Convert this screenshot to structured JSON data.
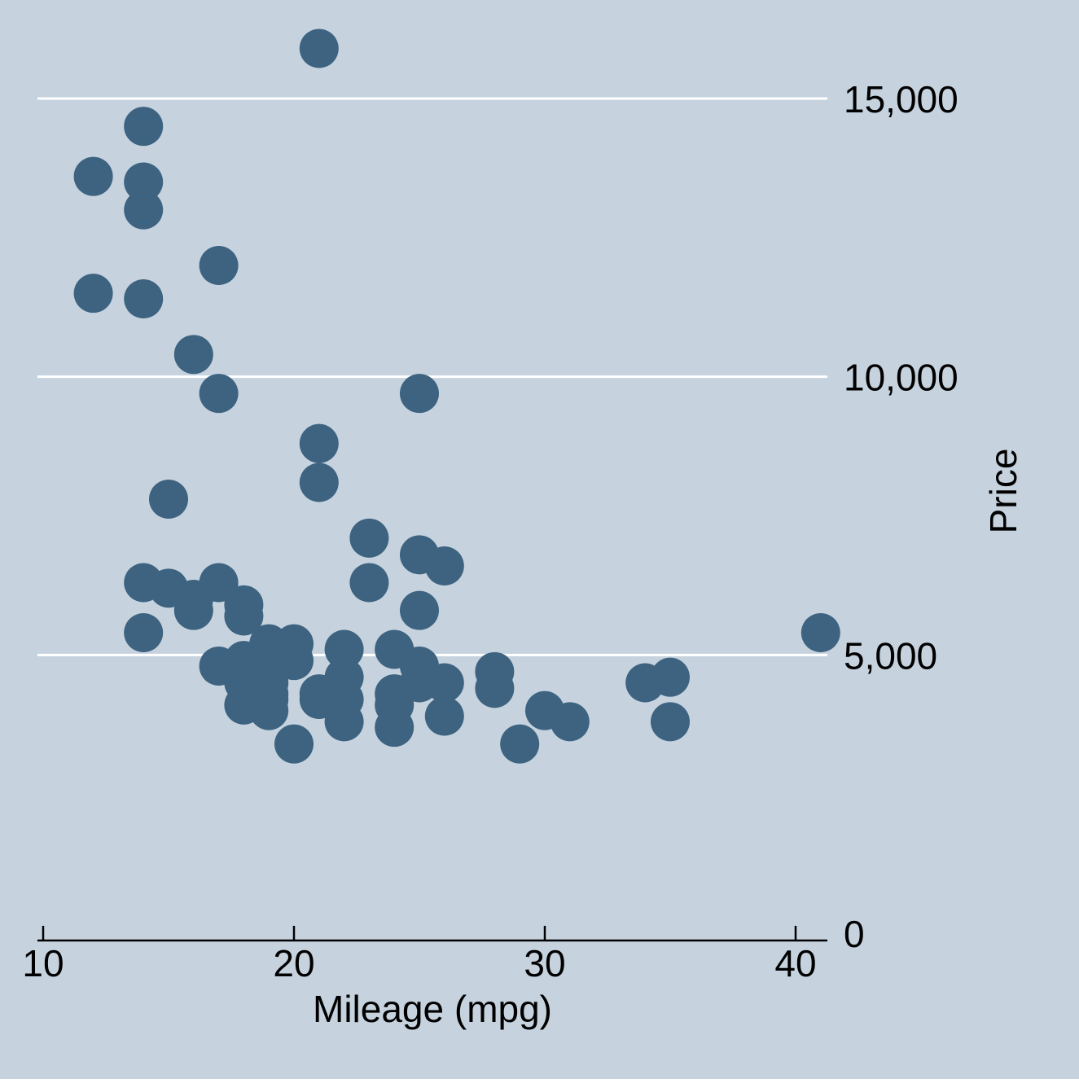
{
  "chart_data": {
    "type": "scatter",
    "xlabel": "Mileage (mpg)",
    "ylabel": "Price",
    "xlim": [
      10,
      41
    ],
    "ylim": [
      0,
      16000
    ],
    "xticks": [
      10,
      20,
      30,
      40
    ],
    "xtick_labels": [
      "10",
      "20",
      "30",
      "40"
    ],
    "yticks": [
      0,
      5000,
      10000,
      15000
    ],
    "ytick_labels": [
      "0",
      "5,000",
      "10,000",
      "15,000"
    ],
    "y_axis_side": "right",
    "grid": "horizontal",
    "colors": {
      "background": "#c6d3df",
      "plot_background": "#c6d3df",
      "marker": "#3d6380",
      "gridline": "#ffffff",
      "axis": "#000000"
    },
    "series": [
      {
        "points": [
          [
            21,
            15900
          ],
          [
            14,
            14500
          ],
          [
            12,
            13600
          ],
          [
            14,
            13500
          ],
          [
            14,
            13000
          ],
          [
            17,
            12000
          ],
          [
            12,
            11500
          ],
          [
            14,
            11400
          ],
          [
            16,
            10400
          ],
          [
            17,
            9700
          ],
          [
            25,
            9700
          ],
          [
            21,
            8800
          ],
          [
            21,
            8100
          ],
          [
            15,
            7800
          ],
          [
            23,
            7100
          ],
          [
            25,
            6800
          ],
          [
            26,
            6600
          ],
          [
            14,
            6300
          ],
          [
            23,
            6300
          ],
          [
            17,
            6300
          ],
          [
            15,
            6200
          ],
          [
            16,
            6000
          ],
          [
            18,
            5900
          ],
          [
            16,
            5800
          ],
          [
            25,
            5800
          ],
          [
            18,
            5700
          ],
          [
            14,
            5400
          ],
          [
            41,
            5400
          ],
          [
            19,
            5200
          ],
          [
            20,
            5200
          ],
          [
            22,
            5100
          ],
          [
            24,
            5100
          ],
          [
            20,
            4900
          ],
          [
            19,
            4900
          ],
          [
            18,
            4900
          ],
          [
            17,
            4800
          ],
          [
            25,
            4800
          ],
          [
            28,
            4700
          ],
          [
            35,
            4600
          ],
          [
            22,
            4600
          ],
          [
            18,
            4500
          ],
          [
            19,
            4500
          ],
          [
            25,
            4500
          ],
          [
            26,
            4500
          ],
          [
            34,
            4500
          ],
          [
            28,
            4400
          ],
          [
            19,
            4300
          ],
          [
            21,
            4300
          ],
          [
            24,
            4300
          ],
          [
            19,
            4200
          ],
          [
            21,
            4200
          ],
          [
            22,
            4200
          ],
          [
            24,
            4100
          ],
          [
            18,
            4100
          ],
          [
            30,
            4000
          ],
          [
            19,
            4000
          ],
          [
            26,
            3900
          ],
          [
            22,
            3800
          ],
          [
            35,
            3800
          ],
          [
            31,
            3800
          ],
          [
            24,
            3700
          ],
          [
            20,
            3400
          ],
          [
            29,
            3400
          ]
        ]
      }
    ]
  }
}
